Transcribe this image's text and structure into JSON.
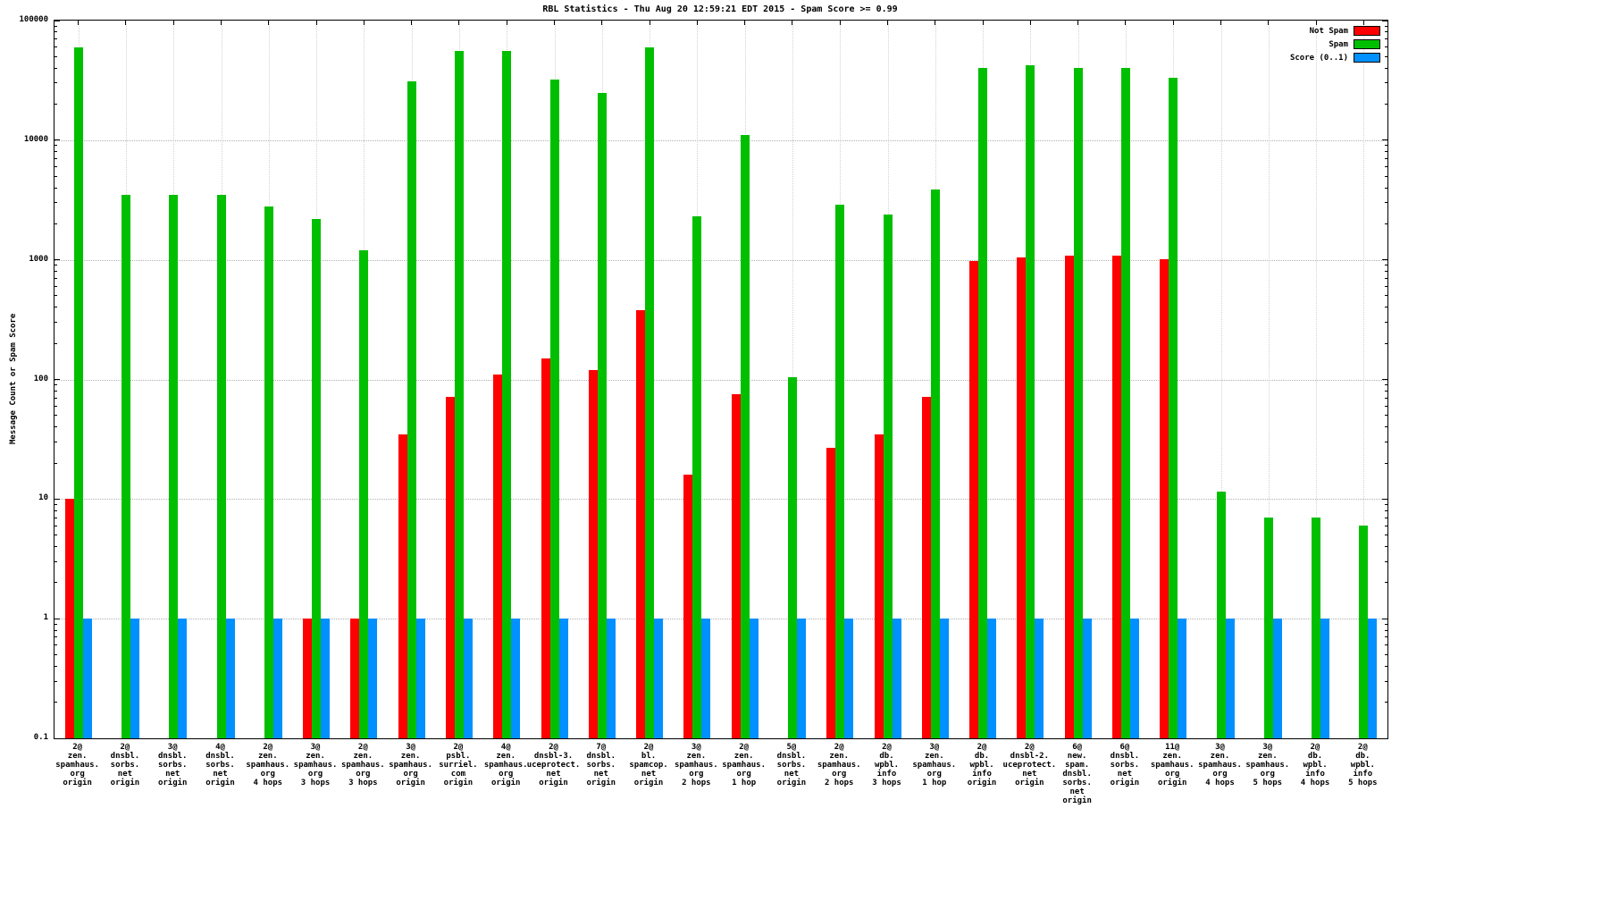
{
  "chart_data": {
    "type": "bar",
    "title": "RBL Statistics - Thu Aug 20 12:59:21 EDT 2015 - Spam Score >= 0.99",
    "ylabel": "Message Count or Spam Score",
    "yscale": "log",
    "ylim": [
      0.1,
      100000
    ],
    "yticks": [
      "100000",
      "10000",
      "1000",
      "100",
      "10",
      "1",
      "0.1"
    ],
    "grid": true,
    "legend_position": "top-right",
    "categories": [
      [
        "2@",
        "zen.",
        "spamhaus.",
        "org",
        "origin"
      ],
      [
        "2@",
        "dnsbl.",
        "sorbs.",
        "net",
        "origin"
      ],
      [
        "3@",
        "dnsbl.",
        "sorbs.",
        "net",
        "origin"
      ],
      [
        "4@",
        "dnsbl.",
        "sorbs.",
        "net",
        "origin"
      ],
      [
        "2@",
        "zen.",
        "spamhaus.",
        "org",
        "4 hops"
      ],
      [
        "3@",
        "zen.",
        "spamhaus.",
        "org",
        "3 hops"
      ],
      [
        "2@",
        "zen.",
        "spamhaus.",
        "org",
        "3 hops"
      ],
      [
        "3@",
        "zen.",
        "spamhaus.",
        "org",
        "origin"
      ],
      [
        "2@",
        "psbl.",
        "surriel.",
        "com",
        "origin"
      ],
      [
        "4@",
        "zen.",
        "spamhaus.",
        "org",
        "origin"
      ],
      [
        "2@",
        "dnsbl-3.",
        "uceprotect.",
        "net",
        "origin"
      ],
      [
        "7@",
        "dnsbl.",
        "sorbs.",
        "net",
        "origin"
      ],
      [
        "2@",
        "bl.",
        "spamcop.",
        "net",
        "origin"
      ],
      [
        "3@",
        "zen.",
        "spamhaus.",
        "org",
        "2 hops"
      ],
      [
        "2@",
        "zen.",
        "spamhaus.",
        "org",
        "1 hop"
      ],
      [
        "5@",
        "dnsbl.",
        "sorbs.",
        "net",
        "origin"
      ],
      [
        "2@",
        "zen.",
        "spamhaus.",
        "org",
        "2 hops"
      ],
      [
        "2@",
        "db.",
        "wpbl.",
        "info",
        "3 hops"
      ],
      [
        "3@",
        "zen.",
        "spamhaus.",
        "org",
        "1 hop"
      ],
      [
        "2@",
        "db.",
        "wpbl.",
        "info",
        "origin"
      ],
      [
        "2@",
        "dnsbl-2.",
        "uceprotect.",
        "net",
        "origin"
      ],
      [
        "6@",
        "new.",
        "spam.",
        "dnsbl.",
        "sorbs.",
        "net",
        "origin"
      ],
      [
        "6@",
        "dnsbl.",
        "sorbs.",
        "net",
        "origin"
      ],
      [
        "11@",
        "zen.",
        "spamhaus.",
        "org",
        "origin"
      ],
      [
        "3@",
        "zen.",
        "spamhaus.",
        "org",
        "4 hops"
      ],
      [
        "3@",
        "zen.",
        "spamhaus.",
        "org",
        "5 hops"
      ],
      [
        "2@",
        "db.",
        "wpbl.",
        "info",
        "4 hops"
      ],
      [
        "2@",
        "db.",
        "wpbl.",
        "info",
        "5 hops"
      ]
    ],
    "series": [
      {
        "name": "Not Spam",
        "color": "#ff0000",
        "values": [
          10,
          null,
          null,
          null,
          null,
          1,
          1,
          35,
          72,
          110,
          150,
          120,
          380,
          16,
          75,
          null,
          27,
          35,
          72,
          980,
          1050,
          1080,
          1080,
          1020,
          null,
          null,
          null,
          null
        ]
      },
      {
        "name": "Spam",
        "color": "#00bf00",
        "values": [
          60000,
          3500,
          3500,
          3500,
          2800,
          2200,
          1200,
          31000,
          56000,
          56000,
          32000,
          25000,
          60000,
          2300,
          11000,
          105,
          2900,
          2400,
          3900,
          40000,
          42000,
          40000,
          40000,
          33000,
          11.5,
          7,
          7,
          6
        ]
      },
      {
        "name": "Score (0..1)",
        "color": "#0090ff",
        "values": [
          1,
          1,
          1,
          1,
          1,
          1,
          1,
          1,
          1,
          1,
          1,
          1,
          1,
          1,
          1,
          1,
          1,
          1,
          1,
          1,
          1,
          1,
          1,
          1,
          1,
          1,
          1,
          1
        ]
      }
    ]
  }
}
